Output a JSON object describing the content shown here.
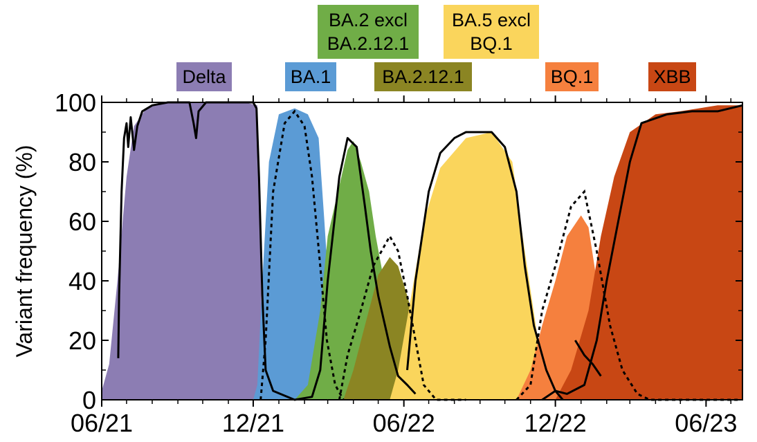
{
  "chart_data": {
    "type": "area",
    "ylabel": "Variant frequency (%)",
    "xlabel": "",
    "ylim": [
      0,
      100
    ],
    "xlim": [
      "2021-06-01",
      "2023-07-15"
    ],
    "yticks": [
      "0",
      "20",
      "40",
      "60",
      "80",
      "100"
    ],
    "xticks": [
      {
        "date": "2021-06-01",
        "label": "06/21"
      },
      {
        "date": "2021-12-01",
        "label": "12/21"
      },
      {
        "date": "2022-06-01",
        "label": "06/22"
      },
      {
        "date": "2022-12-01",
        "label": "12/22"
      },
      {
        "date": "2023-06-01",
        "label": "06/23"
      }
    ],
    "legend": [
      {
        "label": "Delta",
        "color": "#8c7db3"
      },
      {
        "label": "BA.1",
        "color": "#5b9bd5"
      },
      {
        "label_lines": [
          "BA.2 excl",
          "BA.2.12.1"
        ],
        "color": "#70ad47"
      },
      {
        "label": "BA.2.12.1",
        "color": "#8b8523"
      },
      {
        "label_lines": [
          "BA.5 excl",
          "BQ.1"
        ],
        "color": "#fad55c"
      },
      {
        "label": "BQ.1",
        "color": "#f5803e"
      },
      {
        "label": "XBB",
        "color": "#c84714"
      }
    ],
    "series": [
      {
        "name": "Delta",
        "color": "#8c7db3",
        "points": [
          [
            "2021-06-01",
            3
          ],
          [
            "2021-06-10",
            12
          ],
          [
            "2021-06-20",
            40
          ],
          [
            "2021-07-01",
            75
          ],
          [
            "2021-07-10",
            92
          ],
          [
            "2021-07-25",
            98
          ],
          [
            "2021-08-15",
            100
          ],
          [
            "2021-11-20",
            100
          ],
          [
            "2021-12-06",
            99
          ],
          [
            "2021-12-09",
            60
          ],
          [
            "2021-12-12",
            15
          ],
          [
            "2021-12-16",
            0
          ]
        ]
      },
      {
        "name": "BA.1",
        "color": "#5b9bd5",
        "points": [
          [
            "2021-12-01",
            0
          ],
          [
            "2021-12-06",
            5
          ],
          [
            "2021-12-12",
            40
          ],
          [
            "2021-12-20",
            80
          ],
          [
            "2022-01-01",
            96
          ],
          [
            "2022-01-20",
            98
          ],
          [
            "2022-02-05",
            96
          ],
          [
            "2022-02-18",
            88
          ],
          [
            "2022-02-25",
            60
          ],
          [
            "2022-03-05",
            25
          ],
          [
            "2022-03-15",
            8
          ],
          [
            "2022-03-25",
            0
          ]
        ]
      },
      {
        "name": "BA.2 excl BA.2.12.1",
        "color": "#70ad47",
        "points": [
          [
            "2022-01-20",
            0
          ],
          [
            "2022-02-05",
            5
          ],
          [
            "2022-02-20",
            30
          ],
          [
            "2022-03-01",
            55
          ],
          [
            "2022-03-15",
            72
          ],
          [
            "2022-03-25",
            84
          ],
          [
            "2022-04-01",
            87
          ],
          [
            "2022-04-10",
            80
          ],
          [
            "2022-04-20",
            70
          ],
          [
            "2022-04-28",
            55
          ],
          [
            "2022-05-08",
            40
          ],
          [
            "2022-05-18",
            20
          ],
          [
            "2022-05-28",
            0
          ]
        ]
      },
      {
        "name": "BA.2.12.1",
        "color": "#8b8523",
        "points": [
          [
            "2022-03-20",
            0
          ],
          [
            "2022-04-01",
            10
          ],
          [
            "2022-04-15",
            25
          ],
          [
            "2022-05-01",
            42
          ],
          [
            "2022-05-15",
            48
          ],
          [
            "2022-05-25",
            45
          ],
          [
            "2022-06-05",
            35
          ],
          [
            "2022-06-15",
            25
          ],
          [
            "2022-06-25",
            12
          ],
          [
            "2022-07-05",
            0
          ]
        ]
      },
      {
        "name": "BA.5 excl BQ.1",
        "color": "#fad55c",
        "points": [
          [
            "2022-05-15",
            0
          ],
          [
            "2022-05-25",
            10
          ],
          [
            "2022-06-10",
            35
          ],
          [
            "2022-06-25",
            60
          ],
          [
            "2022-07-15",
            78
          ],
          [
            "2022-08-15",
            88
          ],
          [
            "2022-09-15",
            90
          ],
          [
            "2022-10-10",
            80
          ],
          [
            "2022-10-25",
            50
          ],
          [
            "2022-11-10",
            20
          ],
          [
            "2022-11-25",
            5
          ],
          [
            "2022-12-05",
            0
          ]
        ]
      },
      {
        "name": "BQ.1",
        "color": "#f5803e",
        "points": [
          [
            "2022-10-15",
            0
          ],
          [
            "2022-11-01",
            10
          ],
          [
            "2022-11-15",
            25
          ],
          [
            "2022-12-01",
            40
          ],
          [
            "2022-12-15",
            55
          ],
          [
            "2023-01-01",
            62
          ],
          [
            "2023-01-10",
            58
          ],
          [
            "2023-01-20",
            40
          ],
          [
            "2023-02-01",
            20
          ],
          [
            "2023-02-10",
            5
          ],
          [
            "2023-02-20",
            0
          ]
        ]
      },
      {
        "name": "XBB",
        "color": "#c84714",
        "points": [
          [
            "2022-12-01",
            0
          ],
          [
            "2022-12-20",
            10
          ],
          [
            "2023-01-10",
            30
          ],
          [
            "2023-01-25",
            55
          ],
          [
            "2023-02-10",
            75
          ],
          [
            "2023-03-01",
            90
          ],
          [
            "2023-04-01",
            96
          ],
          [
            "2023-05-01",
            97
          ],
          [
            "2023-06-15",
            99
          ],
          [
            "2023-07-15",
            99
          ]
        ]
      }
    ],
    "overlay_solid": [
      [
        [
          "2021-06-21",
          14
        ],
        [
          "2021-06-22",
          35
        ],
        [
          "2021-06-25",
          70
        ],
        [
          "2021-06-28",
          88
        ],
        [
          "2021-07-01",
          93
        ],
        [
          "2021-07-03",
          85
        ],
        [
          "2021-07-06",
          95
        ],
        [
          "2021-07-10",
          84
        ],
        [
          "2021-07-14",
          92
        ],
        [
          "2021-07-20",
          97
        ],
        [
          "2021-08-01",
          99
        ],
        [
          "2021-08-20",
          100
        ],
        [
          "2021-09-15",
          100
        ],
        [
          "2021-09-20",
          93
        ],
        [
          "2021-09-23",
          88
        ],
        [
          "2021-09-26",
          97
        ],
        [
          "2021-10-05",
          100
        ],
        [
          "2021-12-01",
          100
        ],
        [
          "2021-12-05",
          98
        ],
        [
          "2021-12-08",
          75
        ],
        [
          "2021-12-12",
          35
        ],
        [
          "2021-12-16",
          10
        ],
        [
          "2021-12-25",
          3
        ],
        [
          "2022-01-20",
          0
        ],
        [
          "2022-02-10",
          1
        ],
        [
          "2022-02-20",
          10
        ],
        [
          "2022-03-01",
          40
        ],
        [
          "2022-03-15",
          75
        ],
        [
          "2022-03-25",
          88
        ],
        [
          "2022-04-05",
          85
        ],
        [
          "2022-04-15",
          65
        ],
        [
          "2022-04-22",
          50
        ],
        [
          "2022-05-01",
          35
        ],
        [
          "2022-05-15",
          18
        ],
        [
          "2022-05-25",
          8
        ],
        [
          "2022-06-05",
          5
        ],
        [
          "2022-06-15",
          2
        ]
      ],
      [
        [
          "2022-06-05",
          10
        ],
        [
          "2022-06-15",
          40
        ],
        [
          "2022-07-01",
          70
        ],
        [
          "2022-07-15",
          83
        ],
        [
          "2022-08-01",
          88
        ],
        [
          "2022-08-15",
          90
        ],
        [
          "2022-09-15",
          90
        ],
        [
          "2022-10-01",
          85
        ],
        [
          "2022-10-15",
          70
        ],
        [
          "2022-10-25",
          45
        ],
        [
          "2022-11-05",
          25
        ],
        [
          "2022-11-20",
          10
        ],
        [
          "2022-12-01",
          3
        ],
        [
          "2022-12-10",
          0
        ]
      ],
      [
        [
          "2022-11-15",
          0
        ],
        [
          "2022-12-01",
          3
        ],
        [
          "2022-12-15",
          2
        ],
        [
          "2023-01-05",
          5
        ],
        [
          "2023-01-20",
          20
        ],
        [
          "2023-02-01",
          40
        ],
        [
          "2023-02-15",
          60
        ],
        [
          "2023-03-01",
          80
        ],
        [
          "2023-03-15",
          93
        ],
        [
          "2023-04-15",
          96
        ],
        [
          "2023-05-15",
          97
        ],
        [
          "2023-06-15",
          97
        ],
        [
          "2023-07-15",
          99
        ]
      ],
      [
        [
          "2022-12-25",
          20
        ],
        [
          "2023-01-05",
          15
        ],
        [
          "2023-01-15",
          12
        ],
        [
          "2023-01-25",
          8
        ]
      ]
    ],
    "overlay_dashed": [
      [
        [
          "2021-12-10",
          0
        ],
        [
          "2021-12-16",
          20
        ],
        [
          "2021-12-25",
          70
        ],
        [
          "2022-01-08",
          93
        ],
        [
          "2022-01-20",
          97
        ],
        [
          "2022-02-01",
          92
        ],
        [
          "2022-02-10",
          75
        ],
        [
          "2022-02-20",
          45
        ],
        [
          "2022-02-28",
          20
        ],
        [
          "2022-03-10",
          5
        ],
        [
          "2022-03-20",
          0
        ]
      ],
      [
        [
          "2022-03-15",
          0
        ],
        [
          "2022-03-25",
          15
        ],
        [
          "2022-04-10",
          30
        ],
        [
          "2022-04-25",
          45
        ],
        [
          "2022-05-05",
          50
        ],
        [
          "2022-05-15",
          55
        ],
        [
          "2022-05-25",
          50
        ],
        [
          "2022-06-05",
          35
        ],
        [
          "2022-06-15",
          20
        ],
        [
          "2022-06-25",
          5
        ],
        [
          "2022-07-10",
          0
        ],
        [
          "2022-08-15",
          0
        ]
      ],
      [
        [
          "2022-10-15",
          0
        ],
        [
          "2022-11-01",
          5
        ],
        [
          "2022-11-15",
          30
        ],
        [
          "2022-12-01",
          45
        ],
        [
          "2022-12-20",
          65
        ],
        [
          "2023-01-05",
          70
        ],
        [
          "2023-01-20",
          50
        ],
        [
          "2023-02-05",
          25
        ],
        [
          "2023-02-20",
          10
        ],
        [
          "2023-03-10",
          2
        ],
        [
          "2023-03-25",
          0
        ],
        [
          "2023-05-15",
          0
        ],
        [
          "2023-07-10",
          0
        ]
      ]
    ]
  }
}
